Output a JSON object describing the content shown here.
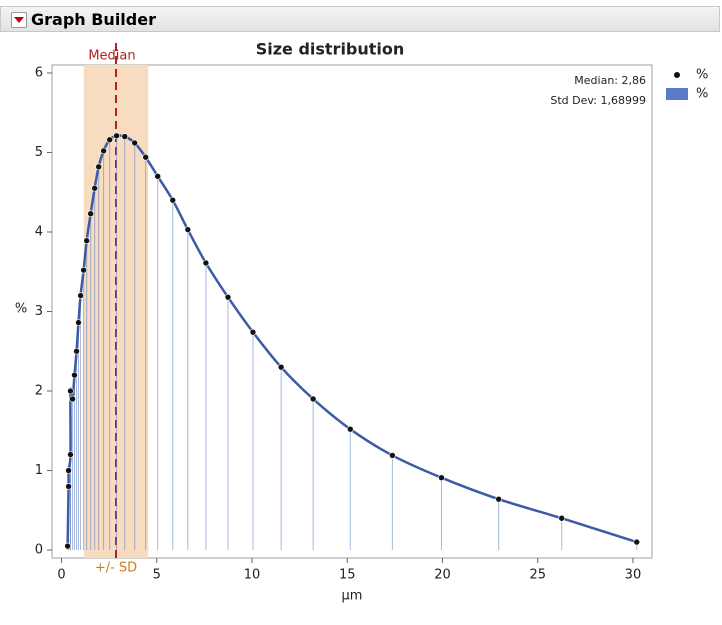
{
  "window": {
    "title": "Graph Builder"
  },
  "chart_data": {
    "type": "combo",
    "title": "Size distribution",
    "xlabel": "µm",
    "ylabel": "%",
    "x": [
      0.32,
      0.37,
      0.37,
      0.47,
      0.47,
      0.58,
      0.68,
      0.79,
      0.89,
      1.0,
      1.16,
      1.32,
      1.53,
      1.74,
      1.95,
      2.21,
      2.53,
      2.89,
      3.32,
      3.84,
      4.42,
      5.05,
      5.84,
      6.63,
      7.58,
      8.74,
      10.05,
      11.53,
      13.21,
      15.16,
      17.37,
      19.95,
      22.95,
      26.26,
      30.2
    ],
    "series": [
      {
        "name": "%",
        "type": "scatter",
        "color": "#111111",
        "values": [
          0.05,
          0.8,
          1.0,
          1.2,
          2.0,
          1.9,
          2.2,
          2.5,
          2.86,
          3.2,
          3.52,
          3.89,
          4.23,
          4.55,
          4.82,
          5.02,
          5.16,
          5.21,
          5.2,
          5.12,
          4.94,
          4.7,
          4.4,
          4.03,
          3.61,
          3.18,
          2.74,
          2.3,
          1.9,
          1.52,
          1.19,
          0.91,
          0.64,
          0.4,
          0.1
        ]
      },
      {
        "name": "%",
        "type": "bar",
        "color": "#5b7bc8",
        "values": [
          0.05,
          0.8,
          1.0,
          1.2,
          2.0,
          1.9,
          2.2,
          2.5,
          2.86,
          3.2,
          3.52,
          3.89,
          4.23,
          4.55,
          4.82,
          5.02,
          5.16,
          5.21,
          5.2,
          5.12,
          4.94,
          4.7,
          4.4,
          4.03,
          3.61,
          3.18,
          2.74,
          2.3,
          1.9,
          1.52,
          1.19,
          0.91,
          0.64,
          0.4,
          0.1
        ]
      }
    ],
    "smoother_color": "#3d5aa6",
    "median": {
      "label": "Median",
      "value": 2.86,
      "value_label": "Median: 2,86",
      "color": "#b22222"
    },
    "sd_band": {
      "label": "+/- SD",
      "sd": 1.68999,
      "sd_label": "Std Dev: 1,68999",
      "color": "#f8dcc0",
      "label_color": "#d07a20"
    },
    "xlim": [
      -0.5,
      31
    ],
    "ylim": [
      -0.1,
      6.1
    ],
    "xticks": [
      0,
      5,
      10,
      15,
      20,
      25,
      30
    ],
    "yticks": [
      0,
      1,
      2,
      3,
      4,
      5,
      6
    ]
  }
}
